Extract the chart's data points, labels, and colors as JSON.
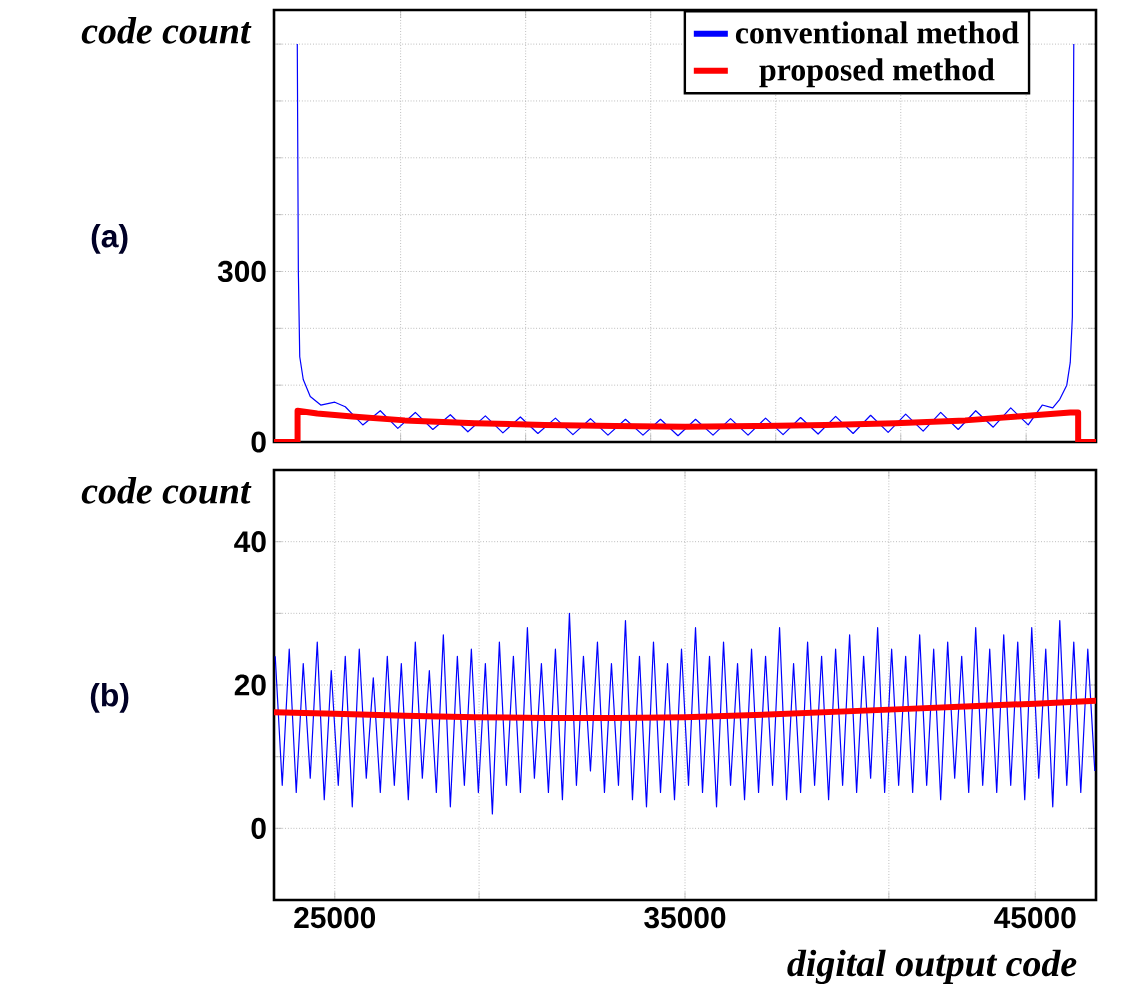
{
  "chart_data": [
    {
      "type": "line",
      "ylabel": "code count",
      "annotations": [
        "(a)"
      ],
      "grid": true,
      "legend": "top right",
      "tick_labels": "y",
      "xlim": [
        23265,
        46735
      ],
      "ylim": [
        0,
        760
      ],
      "xticks": [
        {
          "value": 26880,
          "label": null
        },
        {
          "value": 30450,
          "label": null
        },
        {
          "value": 34020,
          "label": null
        },
        {
          "value": 37590,
          "label": null
        },
        {
          "value": 41160,
          "label": null
        },
        {
          "value": 44740,
          "label": null
        }
      ],
      "yticks": [
        0,
        {
          "value": 100,
          "label": null
        },
        {
          "value": 200,
          "label": null
        },
        300,
        {
          "value": 400,
          "label": null
        },
        {
          "value": 500,
          "label": null
        },
        {
          "value": 600,
          "label": null
        },
        {
          "value": 700,
          "label": null
        }
      ],
      "series": [
        {
          "name": "conventional method",
          "color": "#0000ff",
          "x": [
            23930,
            23960,
            24000,
            24100,
            24300,
            24600,
            25000,
            25300,
            25800,
            26300,
            26800,
            27300,
            27800,
            28300,
            28800,
            29300,
            29800,
            30300,
            30800,
            31300,
            31800,
            32300,
            32800,
            33300,
            33800,
            34300,
            34800,
            35300,
            35800,
            36300,
            36800,
            37300,
            37800,
            38300,
            38800,
            39300,
            39800,
            40300,
            40800,
            41300,
            41800,
            42300,
            42800,
            43300,
            43800,
            44300,
            44800,
            45200,
            45500,
            45700,
            45900,
            46000,
            46060,
            46100
          ],
          "values": [
            700,
            300,
            150,
            110,
            80,
            65,
            70,
            62,
            30,
            55,
            24,
            52,
            22,
            48,
            18,
            46,
            16,
            44,
            15,
            42,
            13,
            41,
            12,
            40,
            12,
            40,
            11,
            40,
            12,
            41,
            12,
            42,
            13,
            43,
            14,
            45,
            15,
            47,
            17,
            49,
            19,
            52,
            22,
            55,
            26,
            60,
            30,
            65,
            60,
            75,
            100,
            140,
            220,
            700
          ]
        },
        {
          "name": "proposed method",
          "color": "#ff0000",
          "x": [
            23265,
            23938,
            23938,
            24500,
            25500,
            27000,
            29000,
            31000,
            33000,
            35000,
            37000,
            39000,
            41000,
            43000,
            44500,
            46000,
            46225,
            46225,
            46735
          ],
          "values": [
            0,
            0,
            55,
            50,
            45,
            38,
            33,
            30,
            28,
            27,
            28,
            30,
            33,
            38,
            45,
            52,
            52,
            0,
            0
          ]
        }
      ]
    },
    {
      "type": "line",
      "ylabel": "code count",
      "xlabel": "digital output code",
      "annotations": [
        "(b)"
      ],
      "grid": true,
      "xlim": [
        23265,
        46735
      ],
      "ylim": [
        -10,
        50
      ],
      "xticks": [
        25000,
        {
          "value": 29120,
          "label": null
        },
        35000,
        {
          "value": 40820,
          "label": null
        },
        45000
      ],
      "yticks": [
        0,
        {
          "value": 10,
          "label": null
        },
        20,
        {
          "value": 30,
          "label": null
        },
        40
      ],
      "series": [
        {
          "color": "#0000ff",
          "x": [
            23300,
            23500,
            23700,
            23900,
            24100,
            24300,
            24500,
            24700,
            24900,
            25100,
            25300,
            25500,
            25700,
            25900,
            26100,
            26300,
            26500,
            26700,
            26900,
            27100,
            27300,
            27500,
            27700,
            27900,
            28100,
            28300,
            28500,
            28700,
            28900,
            29100,
            29300,
            29500,
            29700,
            29900,
            30100,
            30300,
            30500,
            30700,
            30900,
            31100,
            31300,
            31500,
            31700,
            31900,
            32100,
            32300,
            32500,
            32700,
            32900,
            33100,
            33300,
            33500,
            33700,
            33900,
            34100,
            34300,
            34500,
            34700,
            34900,
            35100,
            35300,
            35500,
            35700,
            35900,
            36100,
            36300,
            36500,
            36700,
            36900,
            37100,
            37300,
            37500,
            37700,
            37900,
            38100,
            38300,
            38500,
            38700,
            38900,
            39100,
            39300,
            39500,
            39700,
            39900,
            40100,
            40300,
            40500,
            40700,
            40900,
            41100,
            41300,
            41500,
            41700,
            41900,
            42100,
            42300,
            42500,
            42700,
            42900,
            43100,
            43300,
            43500,
            43700,
            43900,
            44100,
            44300,
            44500,
            44700,
            44900,
            45100,
            45300,
            45500,
            45700,
            45900,
            46100,
            46300,
            46500,
            46700
          ],
          "values": [
            24,
            6,
            25,
            5,
            23,
            7,
            26,
            4,
            22,
            6,
            24,
            3,
            25,
            7,
            21,
            5,
            24,
            6,
            23,
            4,
            26,
            7,
            22,
            5,
            27,
            3,
            24,
            6,
            25,
            5,
            23,
            2,
            26,
            6,
            24,
            5,
            28,
            7,
            23,
            5,
            25,
            4,
            30,
            6,
            24,
            8,
            26,
            5,
            23,
            6,
            29,
            4,
            24,
            3,
            26,
            5,
            23,
            4,
            25,
            6,
            28,
            5,
            24,
            3,
            26,
            6,
            23,
            4,
            25,
            5,
            24,
            6,
            28,
            4,
            23,
            5,
            26,
            6,
            24,
            4,
            25,
            6,
            27,
            5,
            24,
            7,
            28,
            5,
            25,
            6,
            24,
            5,
            27,
            6,
            25,
            4,
            26,
            7,
            24,
            5,
            28,
            6,
            25,
            5,
            27,
            6,
            26,
            4,
            28,
            7,
            25,
            3,
            29,
            6,
            26,
            5,
            25,
            8
          ]
        },
        {
          "color": "#ff0000",
          "x": [
            23265,
            25000,
            27000,
            29000,
            31000,
            33000,
            35000,
            37000,
            39000,
            41000,
            43000,
            45000,
            46735
          ],
          "values": [
            16.2,
            16.0,
            15.7,
            15.5,
            15.4,
            15.4,
            15.5,
            15.8,
            16.2,
            16.6,
            17.0,
            17.4,
            17.8
          ]
        }
      ]
    }
  ]
}
